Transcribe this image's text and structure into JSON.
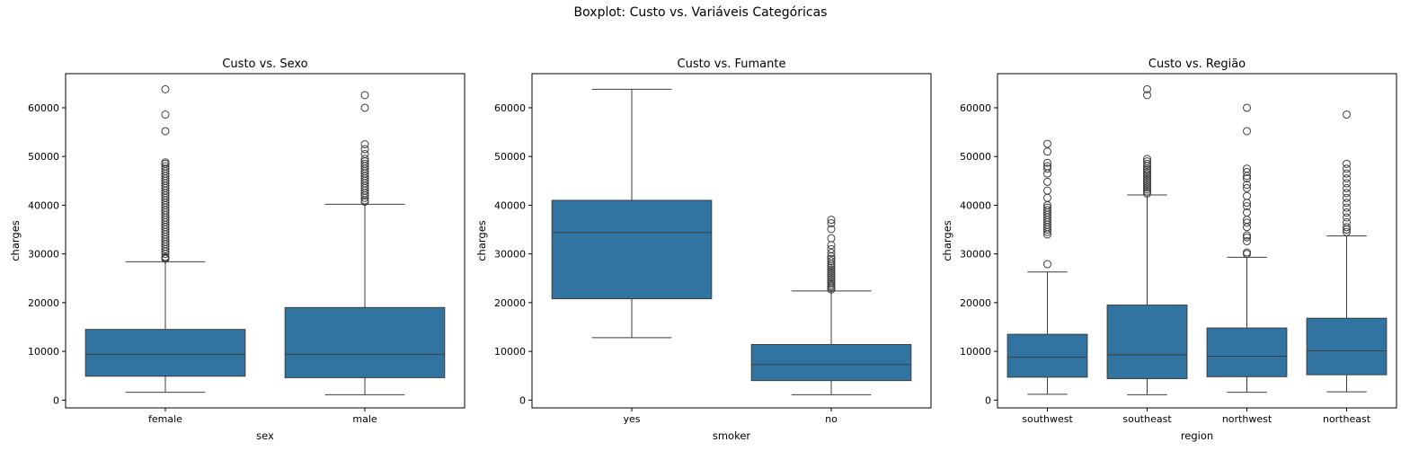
{
  "suptitle": "Boxplot: Custo vs. Variáveis Categóricas",
  "colors": {
    "box_fill": "#3274a1",
    "line": "#3d3d3d",
    "axis": "#000000"
  },
  "chart_data": [
    {
      "type": "box",
      "title": "Custo vs. Sexo",
      "xlabel": "sex",
      "ylabel": "charges",
      "ylim": [
        -1600,
        67000
      ],
      "yticks": [
        0,
        10000,
        20000,
        30000,
        40000,
        50000,
        60000
      ],
      "grid": false,
      "categories": [
        "female",
        "male"
      ],
      "boxes": [
        {
          "min": 1600,
          "q1": 4900,
          "median": 9400,
          "q3": 14500,
          "max": 28400,
          "outliers": [
            29000,
            29200,
            29400,
            30000,
            30500,
            31000,
            31500,
            32000,
            32500,
            33000,
            33500,
            34000,
            34500,
            35000,
            35500,
            36000,
            36500,
            37000,
            37500,
            38000,
            38500,
            39000,
            39500,
            40000,
            40500,
            41000,
            41500,
            42000,
            42500,
            43000,
            43500,
            44000,
            44500,
            45000,
            45500,
            46000,
            46500,
            47000,
            47500,
            48000,
            48500,
            48800,
            55200,
            58600,
            63800
          ]
        },
        {
          "min": 1100,
          "q1": 4600,
          "median": 9400,
          "q3": 19000,
          "max": 40200,
          "outliers": [
            40700,
            41000,
            41500,
            42000,
            42500,
            43000,
            43500,
            44000,
            44500,
            45000,
            45500,
            46000,
            46500,
            47000,
            47500,
            48000,
            48500,
            49000,
            49500,
            50500,
            51500,
            52500,
            60000,
            62600
          ]
        }
      ]
    },
    {
      "type": "box",
      "title": "Custo vs. Fumante",
      "xlabel": "smoker",
      "ylabel": "charges",
      "ylim": [
        -1600,
        67000
      ],
      "yticks": [
        0,
        10000,
        20000,
        30000,
        40000,
        50000,
        60000
      ],
      "grid": false,
      "categories": [
        "yes",
        "no"
      ],
      "boxes": [
        {
          "min": 12800,
          "q1": 20800,
          "median": 34400,
          "q3": 41000,
          "max": 63800,
          "outliers": []
        },
        {
          "min": 1100,
          "q1": 4000,
          "median": 7300,
          "q3": 11400,
          "max": 22400,
          "outliers": [
            22700,
            23000,
            23300,
            23600,
            24000,
            24400,
            24800,
            25200,
            25600,
            26000,
            26400,
            26800,
            27200,
            27600,
            28000,
            28500,
            29000,
            29500,
            30200,
            31000,
            31800,
            33200,
            35100,
            36300,
            37000
          ]
        }
      ]
    },
    {
      "type": "box",
      "title": "Custo vs. Região",
      "xlabel": "region",
      "ylabel": "charges",
      "ylim": [
        -1600,
        67000
      ],
      "yticks": [
        0,
        10000,
        20000,
        30000,
        40000,
        50000,
        60000
      ],
      "grid": false,
      "categories": [
        "southwest",
        "southeast",
        "northwest",
        "northeast"
      ],
      "boxes": [
        {
          "min": 1200,
          "q1": 4700,
          "median": 8800,
          "q3": 13500,
          "max": 26300,
          "outliers": [
            27900,
            34000,
            34500,
            35000,
            35500,
            36000,
            36500,
            37000,
            37500,
            38000,
            38500,
            39000,
            39500,
            40000,
            41500,
            43000,
            44800,
            46500,
            47500,
            48000,
            48700,
            51000,
            52600
          ]
        },
        {
          "min": 1100,
          "q1": 4400,
          "median": 9300,
          "q3": 19500,
          "max": 42100,
          "outliers": [
            42400,
            42800,
            43200,
            43600,
            44000,
            44400,
            44800,
            45200,
            45600,
            46000,
            46400,
            46800,
            47200,
            47500,
            48000,
            48500,
            49000,
            49500,
            62600,
            63800
          ]
        },
        {
          "min": 1600,
          "q1": 4800,
          "median": 9000,
          "q3": 14800,
          "max": 29300,
          "outliers": [
            30000,
            30300,
            32600,
            33400,
            33800,
            35500,
            36400,
            37000,
            38500,
            39800,
            40500,
            41900,
            43500,
            44200,
            45500,
            46000,
            46800,
            47500,
            55200,
            60000
          ]
        },
        {
          "min": 1700,
          "q1": 5200,
          "median": 10100,
          "q3": 16800,
          "max": 33700,
          "outliers": [
            34500,
            35000,
            35500,
            36500,
            37500,
            38500,
            39500,
            40500,
            41500,
            42500,
            43500,
            44500,
            45500,
            46500,
            47500,
            48500,
            58600
          ]
        }
      ]
    }
  ]
}
